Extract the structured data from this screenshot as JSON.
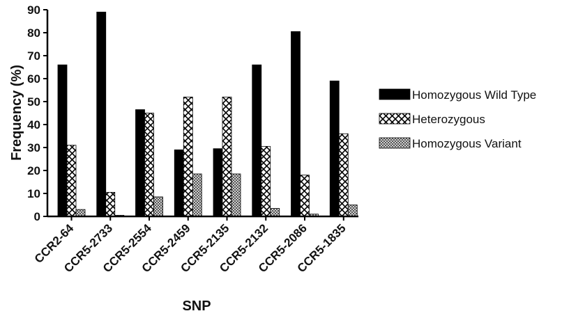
{
  "chart_data": {
    "type": "bar",
    "title": "",
    "xlabel": "SNP",
    "ylabel": "Frequency (%)",
    "ylim": [
      0,
      90
    ],
    "yticks": [
      0,
      10,
      20,
      30,
      40,
      50,
      60,
      70,
      80,
      90
    ],
    "grid": false,
    "legend_position": "right",
    "categories": [
      "CCR2-64",
      "CCR5-2733",
      "CCR5-2554",
      "CCR5-2459",
      "CCR5-2135",
      "CCR5-2132",
      "CCR5-2086",
      "CCR5-1835"
    ],
    "series": [
      {
        "name": "Homozygous Wild Type",
        "fill": "solid",
        "color": "#000000",
        "values": [
          66,
          89,
          46.5,
          29,
          29.5,
          66,
          80.5,
          59
        ]
      },
      {
        "name": "Heterozygous",
        "fill": "crosshatch",
        "color": "#000000",
        "values": [
          31,
          10.5,
          45,
          52,
          52,
          30.5,
          18,
          36
        ]
      },
      {
        "name": "Homozygous Variant",
        "fill": "fine-check",
        "color": "#555555",
        "values": [
          3,
          0.5,
          8.5,
          18.5,
          18.5,
          3.5,
          1,
          5
        ]
      }
    ]
  }
}
